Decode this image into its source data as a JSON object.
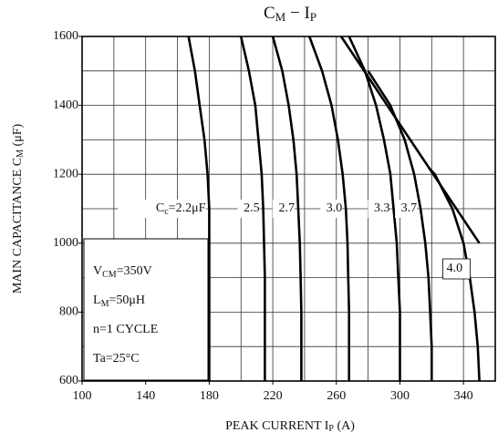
{
  "chart_data": {
    "type": "line",
    "title_parts": [
      "C",
      "M",
      " − I",
      "P"
    ],
    "x_label_parts": [
      "PEAK CURRENT  I",
      "P",
      "  (A)"
    ],
    "y_label_parts": [
      "MAIN CAPACITANCE  C",
      "M",
      "  (μF)"
    ],
    "xlim": [
      100,
      360
    ],
    "xticks": [
      100,
      140,
      180,
      220,
      260,
      300,
      340
    ],
    "xgrid": [
      100,
      120,
      140,
      160,
      180,
      200,
      220,
      240,
      260,
      280,
      300,
      320,
      340,
      360
    ],
    "ylim": [
      600,
      1600
    ],
    "yticks": [
      600,
      800,
      1000,
      1200,
      1400,
      1600
    ],
    "ygrid": [
      600,
      700,
      800,
      900,
      1000,
      1100,
      1200,
      1300,
      1400,
      1500,
      1600
    ],
    "grid": true,
    "first_label": {
      "symbol": "C",
      "sub": "c",
      "eq": "=",
      "unit": "μF"
    },
    "series": [
      {
        "name": "2.2",
        "x": [
          167,
          171,
          174,
          177,
          179,
          180,
          180,
          180,
          180,
          180,
          180
        ],
        "y": [
          1600,
          1500,
          1400,
          1300,
          1200,
          1100,
          1000,
          900,
          800,
          700,
          600
        ]
      },
      {
        "name": "2.5",
        "x": [
          200,
          205,
          209,
          211,
          213,
          214,
          214.5,
          215,
          215,
          215,
          215
        ],
        "y": [
          1600,
          1500,
          1400,
          1300,
          1200,
          1100,
          1000,
          900,
          800,
          700,
          600
        ]
      },
      {
        "name": "2.7",
        "x": [
          220,
          226,
          230,
          233,
          235,
          236,
          237,
          237.5,
          238,
          238,
          238
        ],
        "y": [
          1600,
          1500,
          1400,
          1300,
          1200,
          1100,
          1000,
          900,
          800,
          700,
          600
        ]
      },
      {
        "name": "3.0",
        "x": [
          243,
          251,
          257,
          261,
          264,
          266,
          267,
          267.5,
          268,
          268,
          268
        ],
        "y": [
          1600,
          1500,
          1400,
          1300,
          1200,
          1100,
          1000,
          900,
          800,
          700,
          600
        ]
      },
      {
        "name": "3.3",
        "x": [
          268,
          278,
          285,
          290,
          294,
          296,
          298,
          299,
          300,
          300,
          300
        ],
        "y": [
          1600,
          1500,
          1400,
          1300,
          1200,
          1100,
          1000,
          900,
          800,
          700,
          600
        ]
      },
      {
        "name": "3.7",
        "x": [
          280,
          294,
          303,
          309,
          313,
          316,
          318,
          319,
          320,
          320
        ],
        "y": [
          1500,
          1400,
          1300,
          1200,
          1100,
          1000,
          900,
          800,
          700,
          600
        ]
      },
      {
        "name": "4.0",
        "x": [
          318,
          322,
          333,
          340,
          344,
          347,
          349,
          350
        ],
        "y": [
          1220,
          1200,
          1100,
          1000,
          900,
          800,
          700,
          600
        ]
      }
    ],
    "envelope": {
      "x": [
        263,
        350
      ],
      "y": [
        1600,
        1000
      ]
    },
    "conditions": [
      [
        "V",
        "CM",
        "=350V"
      ],
      [
        "L",
        "M",
        "=50μH"
      ],
      [
        "n=1 CYCLE"
      ],
      [
        "Ta=25°C"
      ]
    ]
  }
}
